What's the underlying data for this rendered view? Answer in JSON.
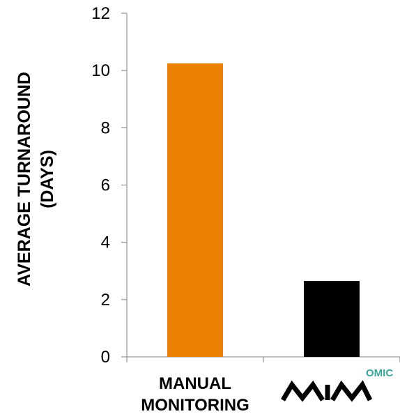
{
  "chart_data": {
    "type": "bar",
    "categories": [
      "MANUAL MONITORING",
      "MIMOMIC"
    ],
    "category_label_lines": [
      [
        "MANUAL",
        "MONITORING"
      ],
      [
        "MIM",
        "OMIC"
      ]
    ],
    "values": [
      10.25,
      2.65
    ],
    "bar_colors": [
      "#ea8104",
      "#000000"
    ],
    "ylabel_lines": [
      "AVERAGE TURNAROUND",
      "(DAYS)"
    ],
    "ylim": [
      0,
      12
    ],
    "yticks": [
      0,
      2,
      4,
      6,
      8,
      10,
      12
    ],
    "grid": false,
    "legend": "none"
  }
}
